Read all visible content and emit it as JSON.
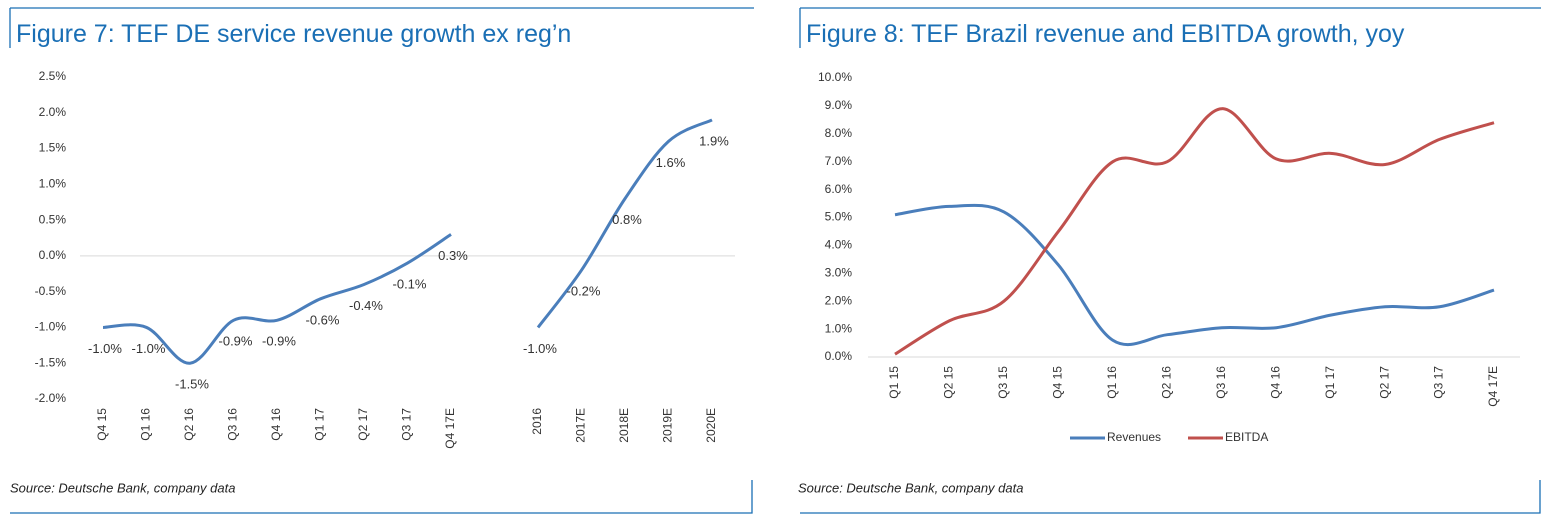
{
  "chart_data": [
    {
      "type": "line",
      "title": "Figure 7: TEF DE service revenue growth ex reg’n",
      "categories": [
        "Q4 15",
        "Q1 16",
        "Q2 16",
        "Q3 16",
        "Q4 16",
        "Q1 17",
        "Q2 17",
        "Q3 17",
        "Q4 17E",
        null,
        "2016",
        "2017E",
        "2018E",
        "2019E",
        "2020E"
      ],
      "values": [
        -1.0,
        -1.0,
        -1.5,
        -0.9,
        -0.9,
        -0.6,
        -0.4,
        -0.1,
        0.3,
        null,
        -1.0,
        -0.2,
        0.8,
        1.6,
        1.9
      ],
      "value_labels": [
        "-1.0%",
        "-1.0%",
        "-1.5%",
        "-0.9%",
        "-0.9%",
        "-0.6%",
        "-0.4%",
        "-0.1%",
        "0.3%",
        null,
        "-1.0%",
        "-0.2%",
        "0.8%",
        "1.6%",
        "1.9%"
      ],
      "color": "#4a7ebb",
      "ylim": [
        -2.0,
        2.5
      ],
      "yticks": [
        {
          "value": -2.0,
          "label": "-2.0%"
        },
        {
          "value": -1.5,
          "label": "-1.5%"
        },
        {
          "value": -1.0,
          "label": "-1.0%"
        },
        {
          "value": -0.5,
          "label": "-0.5%"
        },
        {
          "value": 0,
          "label": "0.0%"
        },
        {
          "value": 0.5,
          "label": "0.5%"
        },
        {
          "value": 1.0,
          "label": "1.0%"
        },
        {
          "value": 1.5,
          "label": "1.5%"
        },
        {
          "value": 2.0,
          "label": "2.0%"
        },
        {
          "value": 2.5,
          "label": "2.5%"
        }
      ],
      "source": "Source: Deutsche Bank, company data"
    },
    {
      "type": "line",
      "title": "Figure 8: TEF Brazil revenue and EBITDA growth, yoy",
      "categories": [
        "Q1 15",
        "Q2 15",
        "Q3 15",
        "Q4 15",
        "Q1 16",
        "Q2 16",
        "Q3 16",
        "Q4 16",
        "Q1 17",
        "Q2 17",
        "Q3 17",
        "Q4 17E"
      ],
      "series": [
        {
          "name": "Revenues",
          "color": "#4a7ebb",
          "values": [
            5.1,
            5.4,
            5.2,
            3.3,
            0.6,
            0.8,
            1.05,
            1.05,
            1.5,
            1.8,
            1.8,
            2.4
          ]
        },
        {
          "name": "EBITDA",
          "color": "#c0504d",
          "values": [
            0.1,
            1.3,
            2.0,
            4.5,
            7.0,
            7.0,
            8.9,
            7.1,
            7.3,
            6.9,
            7.8,
            8.4
          ]
        }
      ],
      "ylim": [
        0,
        10
      ],
      "yticks": [
        {
          "value": 0,
          "label": "0.0%"
        },
        {
          "value": 1,
          "label": "1.0%"
        },
        {
          "value": 2,
          "label": "2.0%"
        },
        {
          "value": 3,
          "label": "3.0%"
        },
        {
          "value": 4,
          "label": "4.0%"
        },
        {
          "value": 5,
          "label": "5.0%"
        },
        {
          "value": 6,
          "label": "6.0%"
        },
        {
          "value": 7,
          "label": "7.0%"
        },
        {
          "value": 8,
          "label": "8.0%"
        },
        {
          "value": 9,
          "label": "9.0%"
        },
        {
          "value": 10,
          "label": "10.0%"
        }
      ],
      "legend": "bottom",
      "source": "Source: Deutsche Bank, company data"
    }
  ]
}
